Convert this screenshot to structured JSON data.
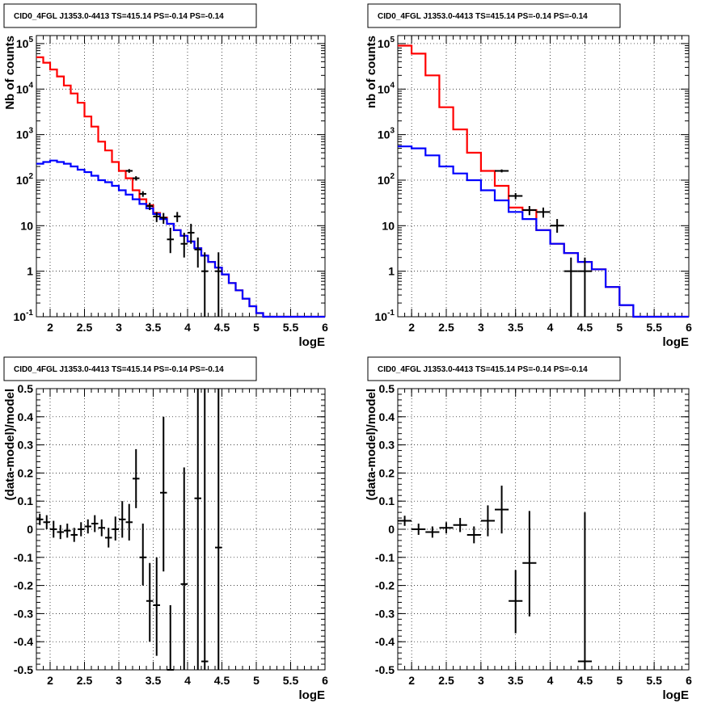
{
  "colors": {
    "model_total": "#ff0000",
    "model_source": "#0000ff",
    "data_points": "#000000",
    "grid": "#000000",
    "background": "#ffffff"
  },
  "chart_data": [
    {
      "type": "line",
      "title": "CID0_4FGL J1353.0-4413 TS=415.14 PS=-0.14 PS=-0.14",
      "xlabel": "logE",
      "ylabel": "Nb of counts",
      "y_scale": "log",
      "xlim": [
        1.8,
        6
      ],
      "ylim": [
        0.1,
        150000
      ],
      "x_ticks": [
        "2",
        "2.5",
        "3",
        "3.5",
        "4",
        "4.5",
        "5",
        "5.5",
        "6"
      ],
      "y_ticks": [
        "10-1",
        "1",
        "10",
        "102",
        "103",
        "104",
        "105"
      ],
      "grid": true,
      "bin_edges": [
        1.8,
        1.9,
        2.0,
        2.1,
        2.2,
        2.3,
        2.4,
        2.5,
        2.6,
        2.7,
        2.8,
        2.9,
        3.0,
        3.1,
        3.2,
        3.3,
        3.4,
        3.5,
        3.6,
        3.7,
        3.8,
        3.9,
        4.0,
        4.1,
        4.2,
        4.3,
        4.4,
        4.5,
        4.6,
        4.7,
        4.8,
        4.9,
        5.0,
        5.1,
        5.2,
        5.3,
        5.4,
        5.5,
        5.6,
        5.7,
        5.8,
        5.9,
        6.0
      ],
      "series": [
        {
          "name": "",
          "color": "#ff0000",
          "values": [
            50000,
            38000,
            27000,
            19000,
            12000,
            8000,
            5000,
            2500,
            1500,
            700,
            450,
            250,
            160,
            110,
            60,
            38,
            28,
            19,
            15,
            11,
            8,
            6,
            4.5,
            3.2,
            2.2,
            1.6,
            1.2,
            0.85,
            0.55,
            0.38,
            0.25,
            0.17,
            0.12,
            0.1,
            0.1,
            0.1,
            0.1,
            0.1,
            0.1,
            0.1,
            0.1,
            0.1
          ]
        },
        {
          "name": "",
          "color": "#0000ff",
          "values": [
            230,
            250,
            270,
            250,
            230,
            200,
            170,
            150,
            125,
            100,
            90,
            75,
            60,
            48,
            38,
            30,
            24,
            18,
            14,
            11,
            8,
            6,
            4.5,
            3.2,
            2.2,
            1.6,
            1.2,
            0.85,
            0.55,
            0.38,
            0.25,
            0.17,
            0.12,
            0.1,
            0.1,
            0.1,
            0.1,
            0.1,
            0.1,
            0.1,
            0.1,
            0.1
          ]
        }
      ],
      "points": [
        {
          "x": 3.15,
          "y": 160,
          "xerr": 0.05,
          "ylo": 145,
          "yhi": 175
        },
        {
          "x": 3.25,
          "y": 110,
          "xerr": 0.05,
          "ylo": 98,
          "yhi": 122
        },
        {
          "x": 3.35,
          "y": 50,
          "xerr": 0.05,
          "ylo": 43,
          "yhi": 57
        },
        {
          "x": 3.45,
          "y": 27,
          "xerr": 0.05,
          "ylo": 22,
          "yhi": 32
        },
        {
          "x": 3.55,
          "y": 16,
          "xerr": 0.05,
          "ylo": 12,
          "yhi": 20
        },
        {
          "x": 3.65,
          "y": 15,
          "xerr": 0.05,
          "ylo": 11,
          "yhi": 19
        },
        {
          "x": 3.75,
          "y": 5,
          "xerr": 0.05,
          "ylo": 2.5,
          "yhi": 9
        },
        {
          "x": 3.85,
          "y": 16,
          "xerr": 0.05,
          "ylo": 12,
          "yhi": 20
        },
        {
          "x": 3.95,
          "y": 4,
          "xerr": 0.05,
          "ylo": 2,
          "yhi": 7
        },
        {
          "x": 4.05,
          "y": 7,
          "xerr": 0.05,
          "ylo": 4,
          "yhi": 11
        },
        {
          "x": 4.15,
          "y": 3,
          "xerr": 0.05,
          "ylo": 1.2,
          "yhi": 5.5
        },
        {
          "x": 4.25,
          "y": 1,
          "xerr": 0.05,
          "ylo": 0.1,
          "yhi": 2.6
        },
        {
          "x": 4.45,
          "y": 1,
          "xerr": 0.05,
          "ylo": 0.1,
          "yhi": 2.6
        }
      ]
    },
    {
      "type": "line",
      "title": "CID0_4FGL J1353.0-4413 TS=415.14 PS=-0.14 PS=-0.14",
      "xlabel": "logE",
      "ylabel": "nb of counts",
      "y_scale": "log",
      "xlim": [
        1.8,
        6
      ],
      "ylim": [
        0.1,
        150000
      ],
      "x_ticks": [
        "2",
        "2.5",
        "3",
        "3.5",
        "4",
        "4.5",
        "5",
        "5.5",
        "6"
      ],
      "y_ticks": [
        "10-1",
        "1",
        "10",
        "102",
        "103",
        "104",
        "105"
      ],
      "grid": true,
      "bin_edges": [
        1.8,
        2.0,
        2.2,
        2.4,
        2.6,
        2.8,
        3.0,
        3.2,
        3.4,
        3.6,
        3.8,
        4.0,
        4.2,
        4.4,
        4.6,
        4.8,
        5.0,
        5.2,
        5.4,
        5.6,
        5.8,
        6.0
      ],
      "series": [
        {
          "name": "",
          "color": "#ff0000",
          "values": [
            90000,
            60000,
            20000,
            4000,
            1300,
            400,
            160,
            75,
            25,
            22,
            8,
            4,
            2.5,
            1.6,
            1.1,
            0.45,
            0.18,
            0.1,
            0.1,
            0.1,
            0.1
          ]
        },
        {
          "name": "",
          "color": "#0000ff",
          "values": [
            550,
            500,
            350,
            200,
            140,
            100,
            60,
            36,
            20,
            14,
            8,
            4,
            2.5,
            1.6,
            1.1,
            0.45,
            0.18,
            0.1,
            0.1,
            0.1,
            0.1
          ]
        }
      ],
      "points": [
        {
          "x": 3.3,
          "y": 160,
          "xerr": 0.1,
          "ylo": 148,
          "yhi": 172
        },
        {
          "x": 3.5,
          "y": 45,
          "xerr": 0.1,
          "ylo": 38,
          "yhi": 52
        },
        {
          "x": 3.7,
          "y": 22,
          "xerr": 0.1,
          "ylo": 17,
          "yhi": 27
        },
        {
          "x": 3.9,
          "y": 20,
          "xerr": 0.1,
          "ylo": 15,
          "yhi": 25
        },
        {
          "x": 4.1,
          "y": 10,
          "xerr": 0.1,
          "ylo": 7,
          "yhi": 14
        },
        {
          "x": 4.3,
          "y": 1,
          "xerr": 0.1,
          "ylo": 0.1,
          "yhi": 2
        },
        {
          "x": 4.5,
          "y": 1,
          "xerr": 0.1,
          "ylo": 0.1,
          "yhi": 2
        }
      ]
    },
    {
      "type": "scatter",
      "title": "CID0_4FGL J1353.0-4413 TS=415.14 PS=-0.14 PS=-0.14",
      "xlabel": "logE",
      "ylabel": "(data-model)/model",
      "xlim": [
        1.8,
        6
      ],
      "ylim": [
        -0.5,
        0.5
      ],
      "x_ticks": [
        "2",
        "2.5",
        "3",
        "3.5",
        "4",
        "4.5",
        "5",
        "5.5",
        "6"
      ],
      "y_ticks": [
        "-0.5",
        "-0.4",
        "-0.3",
        "-0.2",
        "-0.1",
        "0",
        "0.1",
        "0.2",
        "0.3",
        "0.4",
        "0.5"
      ],
      "grid": true,
      "points": [
        {
          "x": 1.85,
          "y": 0.035,
          "xerr": 0.05,
          "ylo": 0.015,
          "yhi": 0.055
        },
        {
          "x": 1.95,
          "y": 0.025,
          "xerr": 0.05,
          "ylo": 0.0,
          "yhi": 0.05
        },
        {
          "x": 2.05,
          "y": 0.0,
          "xerr": 0.05,
          "ylo": -0.03,
          "yhi": 0.03
        },
        {
          "x": 2.15,
          "y": -0.01,
          "xerr": 0.05,
          "ylo": -0.035,
          "yhi": 0.015
        },
        {
          "x": 2.25,
          "y": -0.005,
          "xerr": 0.05,
          "ylo": -0.03,
          "yhi": 0.02
        },
        {
          "x": 2.35,
          "y": -0.02,
          "xerr": 0.05,
          "ylo": -0.045,
          "yhi": 0.005
        },
        {
          "x": 2.45,
          "y": 0.0,
          "xerr": 0.05,
          "ylo": -0.025,
          "yhi": 0.025
        },
        {
          "x": 2.55,
          "y": 0.01,
          "xerr": 0.05,
          "ylo": -0.015,
          "yhi": 0.035
        },
        {
          "x": 2.65,
          "y": 0.02,
          "xerr": 0.05,
          "ylo": -0.01,
          "yhi": 0.05
        },
        {
          "x": 2.75,
          "y": 0.005,
          "xerr": 0.05,
          "ylo": -0.025,
          "yhi": 0.035
        },
        {
          "x": 2.85,
          "y": -0.03,
          "xerr": 0.05,
          "ylo": -0.065,
          "yhi": 0.005
        },
        {
          "x": 2.95,
          "y": 0.0,
          "xerr": 0.05,
          "ylo": -0.04,
          "yhi": 0.045
        },
        {
          "x": 3.05,
          "y": 0.035,
          "xerr": 0.05,
          "ylo": -0.03,
          "yhi": 0.1
        },
        {
          "x": 3.15,
          "y": 0.025,
          "xerr": 0.05,
          "ylo": -0.04,
          "yhi": 0.09
        },
        {
          "x": 3.25,
          "y": 0.18,
          "xerr": 0.05,
          "ylo": 0.075,
          "yhi": 0.285
        },
        {
          "x": 3.35,
          "y": -0.1,
          "xerr": 0.05,
          "ylo": -0.2,
          "yhi": 0.02
        },
        {
          "x": 3.45,
          "y": -0.255,
          "xerr": 0.05,
          "ylo": -0.4,
          "yhi": -0.12
        },
        {
          "x": 3.55,
          "y": -0.27,
          "xerr": 0.05,
          "ylo": -0.45,
          "yhi": -0.1
        },
        {
          "x": 3.65,
          "y": 0.13,
          "xerr": 0.05,
          "ylo": -0.15,
          "yhi": 0.4
        },
        {
          "x": 3.75,
          "y": -0.5,
          "xerr": 0.05,
          "ylo": -0.5,
          "yhi": -0.27
        },
        {
          "x": 3.95,
          "y": -0.195,
          "xerr": 0.05,
          "ylo": -0.5,
          "yhi": 0.22
        },
        {
          "x": 4.15,
          "y": 0.11,
          "xerr": 0.05,
          "ylo": -0.5,
          "yhi": 0.5
        },
        {
          "x": 4.25,
          "y": -0.47,
          "xerr": 0.05,
          "ylo": -0.5,
          "yhi": 0.5
        },
        {
          "x": 4.45,
          "y": -0.065,
          "xerr": 0.05,
          "ylo": -0.5,
          "yhi": 0.5
        }
      ]
    },
    {
      "type": "scatter",
      "title": "CID0_4FGL J1353.0-4413 TS=415.14 PS=-0.14 PS=-0.14",
      "xlabel": "logE",
      "ylabel": "(data-model)/model",
      "xlim": [
        1.8,
        6
      ],
      "ylim": [
        -0.5,
        0.5
      ],
      "x_ticks": [
        "2",
        "2.5",
        "3",
        "3.5",
        "4",
        "4.5",
        "5",
        "5.5",
        "6"
      ],
      "y_ticks": [
        "-0.5",
        "-0.4",
        "-0.3",
        "-0.2",
        "-0.1",
        "0",
        "0.1",
        "0.2",
        "0.3",
        "0.4",
        "0.5"
      ],
      "grid": true,
      "points": [
        {
          "x": 1.9,
          "y": 0.03,
          "xerr": 0.1,
          "ylo": 0.012,
          "yhi": 0.048
        },
        {
          "x": 2.1,
          "y": 0.0,
          "xerr": 0.1,
          "ylo": -0.02,
          "yhi": 0.02
        },
        {
          "x": 2.3,
          "y": -0.01,
          "xerr": 0.1,
          "ylo": -0.03,
          "yhi": 0.01
        },
        {
          "x": 2.5,
          "y": 0.005,
          "xerr": 0.1,
          "ylo": -0.015,
          "yhi": 0.025
        },
        {
          "x": 2.7,
          "y": 0.015,
          "xerr": 0.1,
          "ylo": -0.01,
          "yhi": 0.04
        },
        {
          "x": 2.9,
          "y": -0.02,
          "xerr": 0.1,
          "ylo": -0.05,
          "yhi": 0.01
        },
        {
          "x": 3.1,
          "y": 0.03,
          "xerr": 0.1,
          "ylo": -0.025,
          "yhi": 0.085
        },
        {
          "x": 3.3,
          "y": 0.07,
          "xerr": 0.1,
          "ylo": -0.015,
          "yhi": 0.155
        },
        {
          "x": 3.5,
          "y": -0.255,
          "xerr": 0.1,
          "ylo": -0.37,
          "yhi": -0.145
        },
        {
          "x": 3.7,
          "y": -0.12,
          "xerr": 0.1,
          "ylo": -0.31,
          "yhi": 0.065
        },
        {
          "x": 4.5,
          "y": -0.47,
          "xerr": 0.1,
          "ylo": -0.5,
          "yhi": 0.06
        }
      ]
    }
  ]
}
